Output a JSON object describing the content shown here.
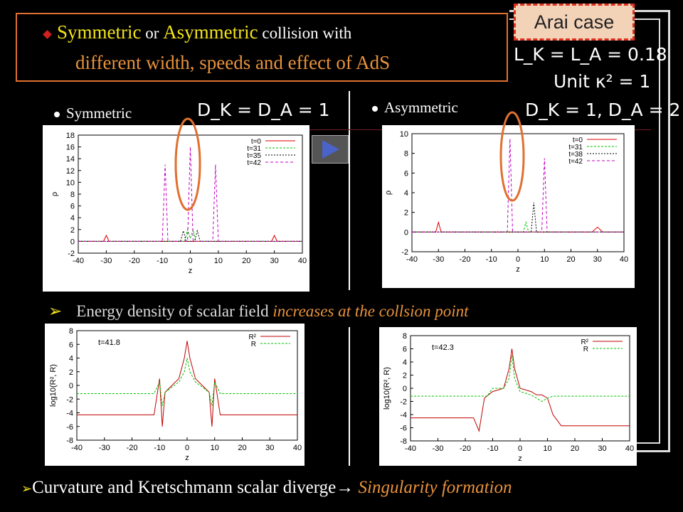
{
  "title": {
    "bullet_icon": "diamond-icon",
    "part1": "Symmetric",
    "part2": " or ",
    "part3": "Asymmetric",
    "part4": " collision with",
    "line2a": "different",
    "line2b": " width, speeds and effect of AdS"
  },
  "badge": {
    "label": "Arai case"
  },
  "params": {
    "L": "L_K = L_A = 0.18",
    "unit": "Unit  κ² = 1",
    "D_sym": "D_K = D_A = 1",
    "D_asym": "D_K = 1, D_A = 2"
  },
  "labels": {
    "symmetric": "Symmetric",
    "asymmetric": "Asymmetric"
  },
  "energy_text": {
    "a": "Energy density of scalar field ",
    "b": "increases at the collsion point"
  },
  "curvature_text": {
    "a": "Curvature and Kretschmann scalar diverge→ ",
    "b": "Singularity formation"
  },
  "colors": {
    "t0": "#e00000",
    "t31": "#00c000",
    "t35": "#000000",
    "t42": "#c000c0",
    "orange": "#e8923c",
    "yellow": "#f2e31a"
  },
  "chart_data": [
    {
      "type": "line",
      "xlabel": "z",
      "ylabel": "ρ",
      "xlim": [
        -40,
        40
      ],
      "ylim": [
        -2,
        18
      ],
      "xticks": [
        "-40",
        "-30",
        "-20",
        "-10",
        "0",
        "10",
        "20",
        "30",
        "40"
      ],
      "yticks": [
        "-2",
        "0",
        "2",
        "4",
        "6",
        "8",
        "10",
        "12",
        "14",
        "16",
        "18"
      ],
      "legend_position": "top-right",
      "series": [
        {
          "name": "t=0",
          "points": [
            [
              -40,
              0
            ],
            [
              -31,
              0
            ],
            [
              -30,
              1
            ],
            [
              -29,
              0
            ],
            [
              29,
              0
            ],
            [
              30,
              1
            ],
            [
              31,
              0
            ],
            [
              40,
              0
            ]
          ]
        },
        {
          "name": "t=31",
          "points": [
            [
              -40,
              0
            ],
            [
              -2,
              0
            ],
            [
              -1,
              2
            ],
            [
              0,
              0.5
            ],
            [
              1,
              2
            ],
            [
              2,
              0
            ],
            [
              40,
              0
            ]
          ]
        },
        {
          "name": "t=35",
          "points": [
            [
              -40,
              0
            ],
            [
              -3.5,
              0
            ],
            [
              -2.5,
              1.8
            ],
            [
              -1.5,
              0
            ],
            [
              1.5,
              0
            ],
            [
              2.5,
              1.8
            ],
            [
              3.5,
              0
            ],
            [
              40,
              0
            ]
          ]
        },
        {
          "name": "t=42",
          "points": [
            [
              -40,
              0
            ],
            [
              -10,
              0
            ],
            [
              -9,
              13
            ],
            [
              -8,
              0
            ],
            [
              -1,
              0
            ],
            [
              0,
              16
            ],
            [
              1,
              0
            ],
            [
              8,
              0
            ],
            [
              9,
              13
            ],
            [
              10,
              0
            ],
            [
              40,
              0
            ]
          ]
        }
      ]
    },
    {
      "type": "line",
      "xlabel": "z",
      "ylabel": "ρ",
      "xlim": [
        -40,
        40
      ],
      "ylim": [
        -2,
        10
      ],
      "xticks": [
        "-40",
        "-30",
        "-20",
        "-10",
        "0",
        "10",
        "20",
        "30",
        "40"
      ],
      "yticks": [
        "-2",
        "0",
        "2",
        "4",
        "6",
        "8",
        "10"
      ],
      "legend_position": "top-right",
      "series": [
        {
          "name": "t=0",
          "points": [
            [
              -40,
              0
            ],
            [
              -31,
              0
            ],
            [
              -30,
              1
            ],
            [
              -29,
              0
            ],
            [
              28,
              0
            ],
            [
              30,
              0.5
            ],
            [
              32,
              0
            ],
            [
              40,
              0
            ]
          ]
        },
        {
          "name": "t=31",
          "points": [
            [
              -40,
              0
            ],
            [
              2,
              0
            ],
            [
              3,
              1
            ],
            [
              4,
              0
            ],
            [
              40,
              0
            ]
          ]
        },
        {
          "name": "t=38",
          "points": [
            [
              -40,
              0
            ],
            [
              5,
              0
            ],
            [
              6,
              3
            ],
            [
              7,
              0
            ],
            [
              40,
              0
            ]
          ]
        },
        {
          "name": "t=42",
          "points": [
            [
              -40,
              0
            ],
            [
              -4,
              0
            ],
            [
              -3,
              9.5
            ],
            [
              -2,
              0
            ],
            [
              9,
              0
            ],
            [
              10,
              7.5
            ],
            [
              11,
              0
            ],
            [
              40,
              0
            ]
          ]
        }
      ]
    },
    {
      "type": "line",
      "xlabel": "z",
      "ylabel": "log10(R², R)",
      "xlim": [
        -40,
        40
      ],
      "ylim": [
        -8,
        8
      ],
      "xticks": [
        "-40",
        "-30",
        "-20",
        "-10",
        "0",
        "10",
        "20",
        "30",
        "40"
      ],
      "yticks": [
        "-8",
        "-6",
        "-4",
        "-2",
        "0",
        "2",
        "4",
        "6",
        "8"
      ],
      "annotation": "t=41.8",
      "legend_position": "top-right",
      "series": [
        {
          "name": "R²",
          "points": [
            [
              -40,
              -4.3
            ],
            [
              -12,
              -4.3
            ],
            [
              -10,
              1
            ],
            [
              -9,
              -6
            ],
            [
              -8,
              -1
            ],
            [
              -3,
              1
            ],
            [
              -1,
              4
            ],
            [
              0,
              6.5
            ],
            [
              1,
              4
            ],
            [
              3,
              1
            ],
            [
              8,
              -1
            ],
            [
              9,
              -6
            ],
            [
              10,
              1
            ],
            [
              12,
              -4.3
            ],
            [
              40,
              -4.3
            ]
          ]
        },
        {
          "name": "R",
          "points": [
            [
              -40,
              -1.2
            ],
            [
              -12,
              -1.2
            ],
            [
              -10,
              0.5
            ],
            [
              -9,
              -3
            ],
            [
              -8,
              -1
            ],
            [
              -3,
              0.5
            ],
            [
              -1,
              2
            ],
            [
              0,
              4
            ],
            [
              1,
              2
            ],
            [
              3,
              0.5
            ],
            [
              8,
              -1
            ],
            [
              9,
              -3
            ],
            [
              10,
              0.5
            ],
            [
              12,
              -1.2
            ],
            [
              40,
              -1.2
            ]
          ]
        }
      ]
    },
    {
      "type": "line",
      "xlabel": "z",
      "ylabel": "log10(R², R)",
      "xlim": [
        -40,
        40
      ],
      "ylim": [
        -8,
        8
      ],
      "xticks": [
        "-40",
        "-30",
        "-20",
        "-10",
        "0",
        "10",
        "20",
        "30",
        "40"
      ],
      "yticks": [
        "-8",
        "-6",
        "-4",
        "-2",
        "0",
        "2",
        "4",
        "6",
        "8"
      ],
      "annotation": "t=42.3",
      "legend_position": "top-right",
      "series": [
        {
          "name": "R²",
          "points": [
            [
              -40,
              -4.5
            ],
            [
              -17,
              -4.5
            ],
            [
              -15,
              -6.5
            ],
            [
              -13,
              -1.5
            ],
            [
              -10,
              -0.5
            ],
            [
              -6,
              0
            ],
            [
              -4,
              3
            ],
            [
              -3,
              6
            ],
            [
              -2,
              3
            ],
            [
              0,
              0
            ],
            [
              4,
              -0.5
            ],
            [
              6,
              -1
            ],
            [
              8,
              -1
            ],
            [
              10,
              -1.5
            ],
            [
              12,
              -4
            ],
            [
              15,
              -5.7
            ],
            [
              40,
              -5.7
            ]
          ]
        },
        {
          "name": "R",
          "points": [
            [
              -40,
              -1.2
            ],
            [
              -12,
              -1.2
            ],
            [
              -10,
              0
            ],
            [
              -6,
              0
            ],
            [
              -4,
              1.5
            ],
            [
              -3,
              5
            ],
            [
              -2,
              1.5
            ],
            [
              0,
              -0.5
            ],
            [
              4,
              -1
            ],
            [
              8,
              -2
            ],
            [
              10,
              -1.5
            ],
            [
              12,
              -1.2
            ],
            [
              40,
              -1.2
            ]
          ]
        }
      ]
    }
  ]
}
